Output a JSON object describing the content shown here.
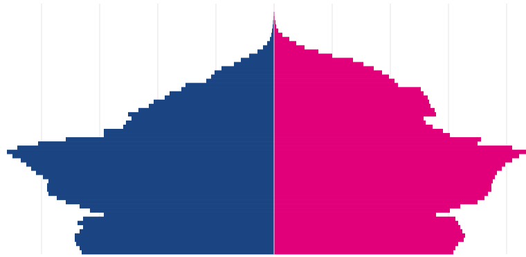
{
  "chart_data": {
    "type": "pyramid",
    "xlim": [
      -396,
      364
    ],
    "xticks": [
      -336,
      -252,
      -168,
      -84,
      0,
      84,
      168,
      252,
      336
    ],
    "grid": true,
    "series": [
      {
        "color": "#1b4582",
        "values": [
          -278,
          -281,
          -286,
          -288,
          -288,
          -281,
          -276,
          -284,
          -276,
          -246,
          -266,
          -281,
          -301,
          -314,
          -326,
          -328,
          -328,
          -326,
          -334,
          -344,
          -351,
          -358,
          -366,
          -378,
          -386,
          -371,
          -341,
          -301,
          -246,
          -246,
          -218,
          -214,
          -206,
          -211,
          -196,
          -181,
          -174,
          -158,
          -151,
          -134,
          -128,
          -98,
          -91,
          -86,
          -76,
          -58,
          -48,
          -36,
          -24,
          -16,
          -10,
          -6,
          -4,
          -3,
          -2,
          -1.5,
          -1,
          -0.8,
          -0.5,
          -0.3
        ]
      },
      {
        "color": "#e2007a",
        "values": [
          259,
          262,
          266,
          274,
          276,
          272,
          269,
          266,
          262,
          234,
          254,
          269,
          294,
          304,
          309,
          314,
          314,
          316,
          319,
          322,
          329,
          334,
          344,
          354,
          364,
          344,
          294,
          299,
          254,
          244,
          229,
          219,
          216,
          234,
          232,
          226,
          224,
          222,
          216,
          212,
          179,
          174,
          166,
          156,
          144,
          129,
          114,
          84,
          64,
          44,
          32,
          22,
          12,
          6,
          3,
          2,
          1,
          0.8,
          0.5,
          0.3
        ]
      }
    ]
  }
}
